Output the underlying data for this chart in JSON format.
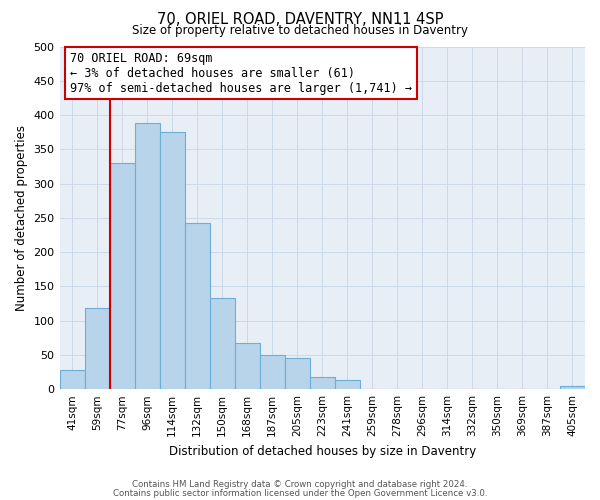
{
  "title_line1": "70, ORIEL ROAD, DAVENTRY, NN11 4SP",
  "title_line2": "Size of property relative to detached houses in Daventry",
  "xlabel": "Distribution of detached houses by size in Daventry",
  "ylabel": "Number of detached properties",
  "categories": [
    "41sqm",
    "59sqm",
    "77sqm",
    "96sqm",
    "114sqm",
    "132sqm",
    "150sqm",
    "168sqm",
    "187sqm",
    "205sqm",
    "223sqm",
    "241sqm",
    "259sqm",
    "278sqm",
    "296sqm",
    "314sqm",
    "332sqm",
    "350sqm",
    "369sqm",
    "387sqm",
    "405sqm"
  ],
  "values": [
    28,
    118,
    330,
    388,
    375,
    242,
    133,
    68,
    50,
    46,
    18,
    13,
    0,
    0,
    0,
    0,
    0,
    0,
    0,
    0,
    5
  ],
  "bar_color": "#b8d4ea",
  "bar_edge_color": "#6baed6",
  "vline_x": 1.5,
  "vline_color": "#cc0000",
  "annotation_line1": "70 ORIEL ROAD: 69sqm",
  "annotation_line2": "← 3% of detached houses are smaller (61)",
  "annotation_line3": "97% of semi-detached houses are larger (1,741) →",
  "annotation_box_color": "#ffffff",
  "annotation_box_edge": "#cc0000",
  "ylim": [
    0,
    500
  ],
  "yticks": [
    0,
    50,
    100,
    150,
    200,
    250,
    300,
    350,
    400,
    450,
    500
  ],
  "footer_line1": "Contains HM Land Registry data © Crown copyright and database right 2024.",
  "footer_line2": "Contains public sector information licensed under the Open Government Licence v3.0.",
  "grid_color": "#ccd9e8",
  "background_color": "#e8eef5"
}
